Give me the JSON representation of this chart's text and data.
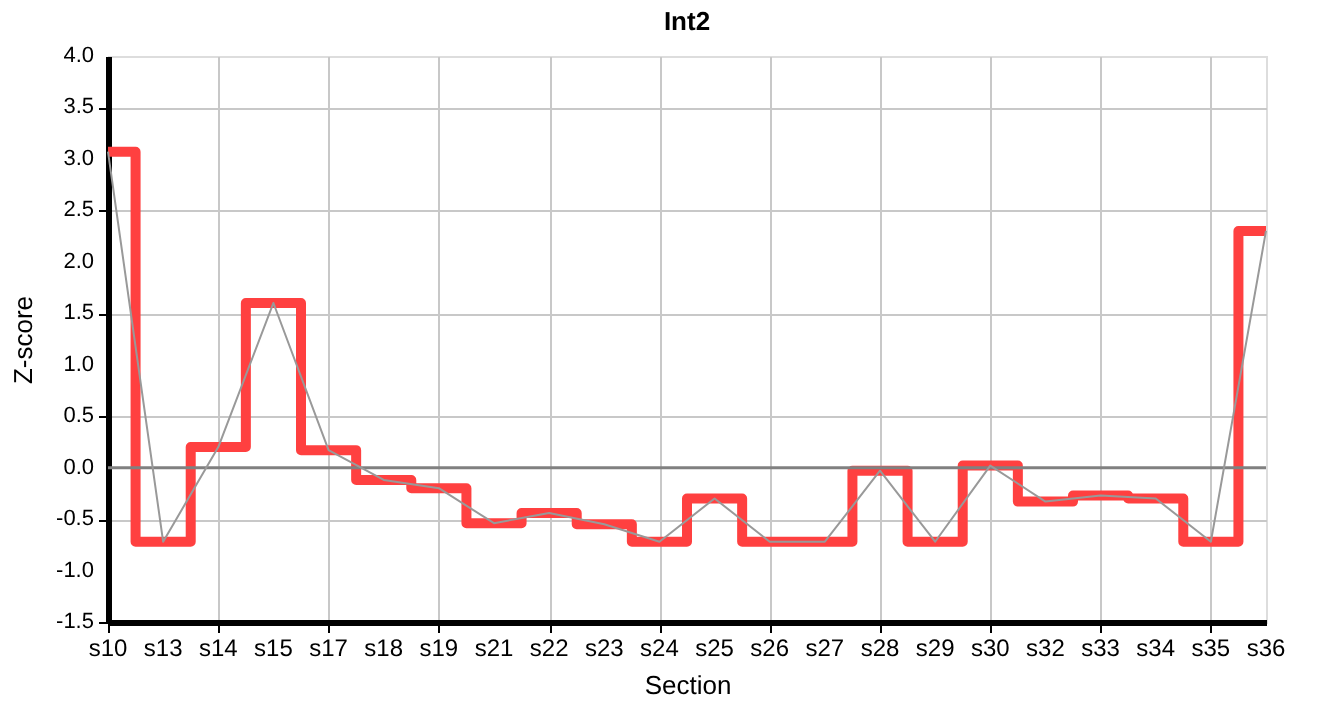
{
  "chart_data": {
    "type": "step",
    "title": "Int2",
    "xlabel": "Section",
    "ylabel": "Z-score",
    "categories": [
      "s10",
      "s13",
      "s14",
      "s15",
      "s17",
      "s18",
      "s19",
      "s21",
      "s22",
      "s23",
      "s24",
      "s25",
      "s26",
      "s27",
      "s28",
      "s29",
      "s30",
      "s32",
      "s33",
      "s34",
      "s35",
      "s36"
    ],
    "series": [
      {
        "color": "#ff4040",
        "values": [
          3.07,
          -0.72,
          0.2,
          1.6,
          0.17,
          -0.12,
          -0.2,
          -0.54,
          -0.44,
          -0.55,
          -0.72,
          -0.3,
          -0.72,
          -0.72,
          -0.03,
          -0.72,
          0.02,
          -0.33,
          -0.27,
          -0.3,
          -0.72,
          2.3
        ]
      },
      {
        "type": "line",
        "color": "#999999",
        "values": [
          3.07,
          -0.72,
          0.2,
          1.6,
          0.17,
          -0.12,
          -0.2,
          -0.54,
          -0.44,
          -0.55,
          -0.72,
          -0.3,
          -0.72,
          -0.72,
          -0.03,
          -0.72,
          0.02,
          -0.33,
          -0.27,
          -0.3,
          -0.72,
          2.3
        ]
      }
    ],
    "ylim": [
      -1.5,
      4.0
    ],
    "yticks": [
      {
        "value": -1.5,
        "label": "-1.5"
      },
      {
        "value": -1,
        "label": "-1.0"
      },
      {
        "value": -0.5,
        "label": "-0.5"
      },
      {
        "value": 0,
        "label": "0.0"
      },
      {
        "value": 0.5,
        "label": "0.5"
      },
      {
        "value": 1,
        "label": "1.0"
      },
      {
        "value": 1.5,
        "label": "1.5"
      },
      {
        "value": 2,
        "label": "2.0"
      },
      {
        "value": 2.5,
        "label": "2.5"
      },
      {
        "value": 3,
        "label": "3.0"
      },
      {
        "value": 3.5,
        "label": "3.5"
      },
      {
        "value": 4,
        "label": "4.0"
      }
    ],
    "ref_lines": [
      {
        "axis": "y",
        "value": 0,
        "color": "#808080"
      }
    ],
    "grid": true,
    "marker": "none",
    "line_style": "solid"
  }
}
